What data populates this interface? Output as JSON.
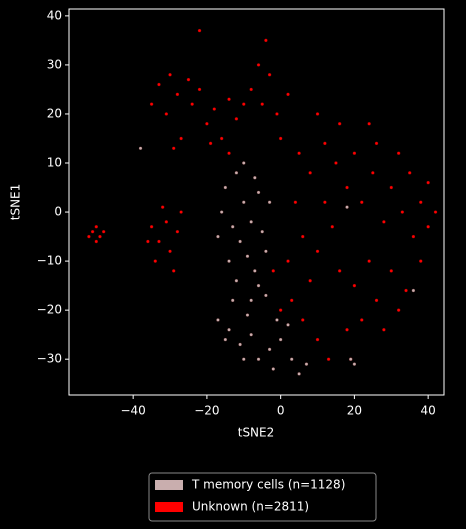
{
  "chart_data": {
    "type": "scatter",
    "xlabel": "tSNE2",
    "ylabel": "tSNE1",
    "xlim": [
      -57.4,
      44.3
    ],
    "ylim": [
      -37.3,
      41.4
    ],
    "xticks": [
      {
        "value": -40,
        "label": "−40"
      },
      {
        "value": -20,
        "label": "−20"
      },
      0,
      20,
      40
    ],
    "yticks": [
      {
        "value": -30,
        "label": "−30"
      },
      {
        "value": -20,
        "label": "−20"
      },
      {
        "value": -10,
        "label": "−10"
      },
      0,
      10,
      20,
      30,
      40
    ],
    "legend": "lower center",
    "series": [
      {
        "name": "Unknown (n=2811)",
        "color": "#ff0000",
        "x": [
          -51,
          -50,
          -49,
          -52,
          -48,
          -50,
          -35,
          -33,
          -31,
          -30,
          -34,
          -28,
          -32,
          -29,
          -36,
          -27,
          -33,
          -30,
          -28,
          -25,
          -31,
          -27,
          -24,
          -35,
          -29,
          -22,
          -20,
          -18,
          -16,
          -14,
          -19,
          -12,
          -8,
          -5,
          -3,
          -1,
          2,
          -6,
          -4,
          -10,
          -14,
          0,
          5,
          8,
          12,
          15,
          18,
          20,
          22,
          25,
          28,
          30,
          33,
          36,
          38,
          40,
          42,
          4,
          6,
          10,
          14,
          16,
          20,
          24,
          26,
          30,
          34,
          38,
          35,
          32,
          24,
          16,
          10,
          2,
          3,
          6,
          10,
          13,
          18,
          22,
          28,
          32,
          19,
          8,
          0,
          -2,
          12,
          26,
          40,
          -22
        ],
        "y": [
          -4,
          -6,
          -5,
          -5,
          -4,
          -3,
          -3,
          -6,
          -2,
          -8,
          -10,
          -4,
          1,
          -12,
          -6,
          0,
          26,
          28,
          24,
          27,
          20,
          15,
          22,
          22,
          13,
          25,
          18,
          21,
          15,
          12,
          14,
          19,
          25,
          22,
          28,
          20,
          24,
          30,
          35,
          22,
          23,
          15,
          12,
          8,
          14,
          10,
          5,
          12,
          2,
          8,
          -2,
          5,
          0,
          -5,
          2,
          -3,
          0,
          2,
          -5,
          -8,
          -3,
          -12,
          -15,
          -10,
          -18,
          -12,
          -16,
          -10,
          8,
          12,
          18,
          18,
          20,
          -10,
          -18,
          -22,
          -26,
          -30,
          -24,
          -22,
          -24,
          -20,
          -30,
          -14,
          -20,
          -12,
          2,
          14,
          6,
          37
        ]
      },
      {
        "name": "T memory cells (n=1128)",
        "color": "#c9aeae",
        "x": [
          -15,
          -12,
          -10,
          -8,
          -6,
          -13,
          -11,
          -9,
          -7,
          -14,
          -16,
          -10,
          -5,
          -12,
          -8,
          -4,
          -3,
          -6,
          -13,
          -17,
          -14,
          -11,
          -8,
          -6,
          -3,
          0,
          3,
          5,
          -10,
          -15,
          2,
          -2,
          7,
          19,
          20,
          -1,
          -9,
          -17,
          -7,
          -4,
          36,
          -38,
          18
        ],
        "y": [
          5,
          8,
          2,
          -2,
          4,
          -3,
          -6,
          -9,
          -12,
          -10,
          0,
          10,
          -4,
          -14,
          -18,
          -8,
          2,
          -15,
          -18,
          -22,
          -24,
          -27,
          -25,
          -30,
          -28,
          -26,
          -30,
          -33,
          -30,
          -26,
          -23,
          -32,
          -31,
          -30,
          -31,
          -22,
          -21,
          -5,
          7,
          -17,
          -16,
          13,
          1
        ]
      }
    ]
  }
}
